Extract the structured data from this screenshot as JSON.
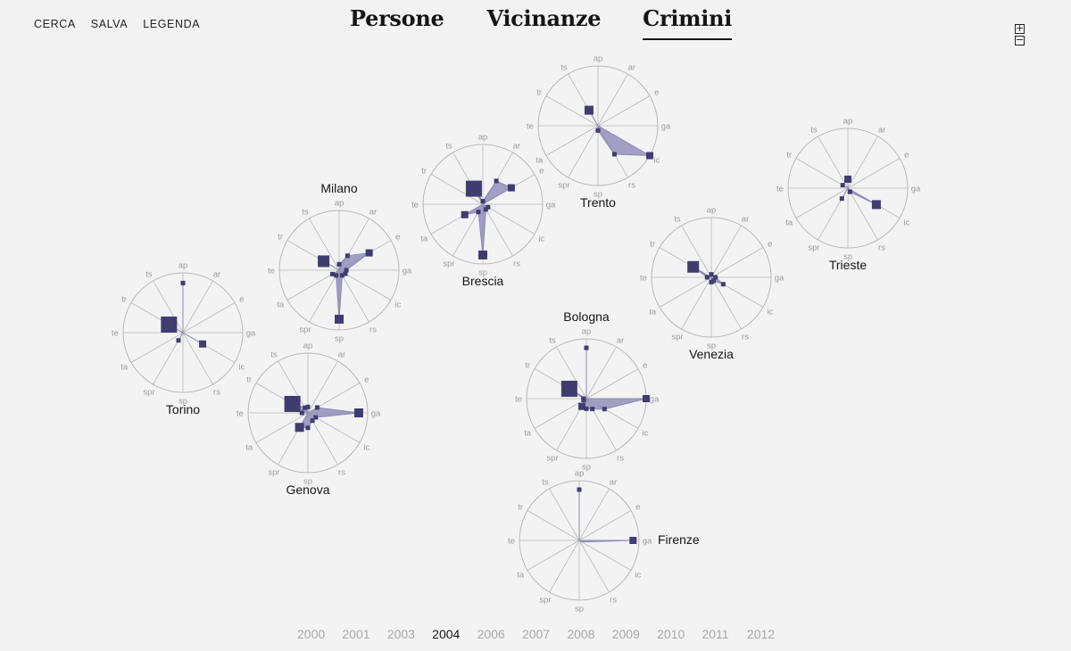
{
  "top_nav": [
    "CERCA",
    "SALVA",
    "LEGENDA"
  ],
  "sections": [
    {
      "label": "Persone",
      "active": false
    },
    {
      "label": "Vicinanze",
      "active": false
    },
    {
      "label": "Crimini",
      "active": true
    }
  ],
  "zoom": {
    "plus": "+",
    "minus": "−"
  },
  "years": [
    "2000",
    "2001",
    "2003",
    "2004",
    "2006",
    "2007",
    "2008",
    "2009",
    "2010",
    "2011",
    "2012"
  ],
  "selected_year": "2004",
  "colors": {
    "fill": "#8c89b6",
    "marker": "#3f3d70",
    "grid": "#b9b9b9",
    "axis_text": "#9c9c9c"
  },
  "chart_data": {
    "type": "radar",
    "selected_year": "2004",
    "axes": [
      "ap",
      "ar",
      "e",
      "ga",
      "ic",
      "rs",
      "sp",
      "spr",
      "ta",
      "te",
      "tr",
      "ts"
    ],
    "cities": [
      {
        "name": "Trento",
        "values": [
          0,
          0,
          0,
          0,
          1.0,
          0.55,
          0.08,
          0,
          0,
          0,
          0,
          0.3
        ],
        "sizes": [
          0,
          0,
          0,
          0,
          2,
          1,
          1,
          0,
          0,
          0,
          0,
          3
        ]
      },
      {
        "name": "Brescia",
        "values": [
          0.05,
          0.45,
          0.55,
          0,
          0.1,
          0.1,
          0.85,
          0.15,
          0.35,
          0,
          0,
          0.3
        ],
        "sizes": [
          1,
          1,
          2,
          0,
          1,
          1,
          3,
          1,
          2,
          0,
          0,
          5
        ]
      },
      {
        "name": "Milano",
        "values": [
          0.1,
          0.28,
          0.58,
          0.12,
          0.12,
          0.1,
          0.82,
          0.1,
          0.13,
          0,
          0.3,
          0
        ],
        "sizes": [
          1,
          1,
          2,
          1,
          1,
          1,
          3,
          1,
          1,
          0,
          4,
          0
        ]
      },
      {
        "name": "Torino",
        "values": [
          0.83,
          0,
          0,
          0,
          0.38,
          0,
          0,
          0.15,
          0,
          0,
          0.27,
          0
        ],
        "sizes": [
          1,
          0,
          0,
          0,
          2,
          0,
          0,
          1,
          0,
          0,
          5,
          0
        ]
      },
      {
        "name": "Genova",
        "values": [
          0.1,
          0,
          0.18,
          0.85,
          0.15,
          0.15,
          0.25,
          0.28,
          0,
          0.1,
          0.3,
          0.1
        ],
        "sizes": [
          1,
          0,
          1,
          3,
          1,
          1,
          1,
          3,
          0,
          1,
          5,
          1
        ]
      },
      {
        "name": "Venezia",
        "values": [
          0.05,
          0,
          0,
          0.07,
          0.23,
          0.07,
          0.08,
          0,
          0,
          0.07,
          0.35,
          0
        ],
        "sizes": [
          1,
          0,
          0,
          1,
          1,
          1,
          1,
          0,
          0,
          1,
          4,
          0
        ]
      },
      {
        "name": "Trieste",
        "values": [
          0.15,
          0,
          0,
          0,
          0.55,
          0.07,
          0,
          0.2,
          0,
          0,
          0.1,
          0
        ],
        "sizes": [
          2,
          0,
          0,
          0,
          3,
          1,
          0,
          1,
          0,
          0,
          1,
          0
        ]
      },
      {
        "name": "Bologna",
        "values": [
          0.85,
          0,
          0,
          1.0,
          0.35,
          0.2,
          0.17,
          0.15,
          0.05,
          0.05,
          0.33,
          0
        ],
        "sizes": [
          1,
          0,
          0,
          2,
          1,
          1,
          1,
          2,
          1,
          1,
          5,
          0
        ]
      },
      {
        "name": "Firenze",
        "values": [
          0.85,
          0,
          0,
          0.9,
          0.05,
          0,
          0,
          0,
          0,
          0,
          0,
          0
        ],
        "sizes": [
          1,
          0,
          0,
          2,
          0,
          0,
          0,
          0,
          0,
          0,
          0,
          0
        ]
      }
    ]
  }
}
